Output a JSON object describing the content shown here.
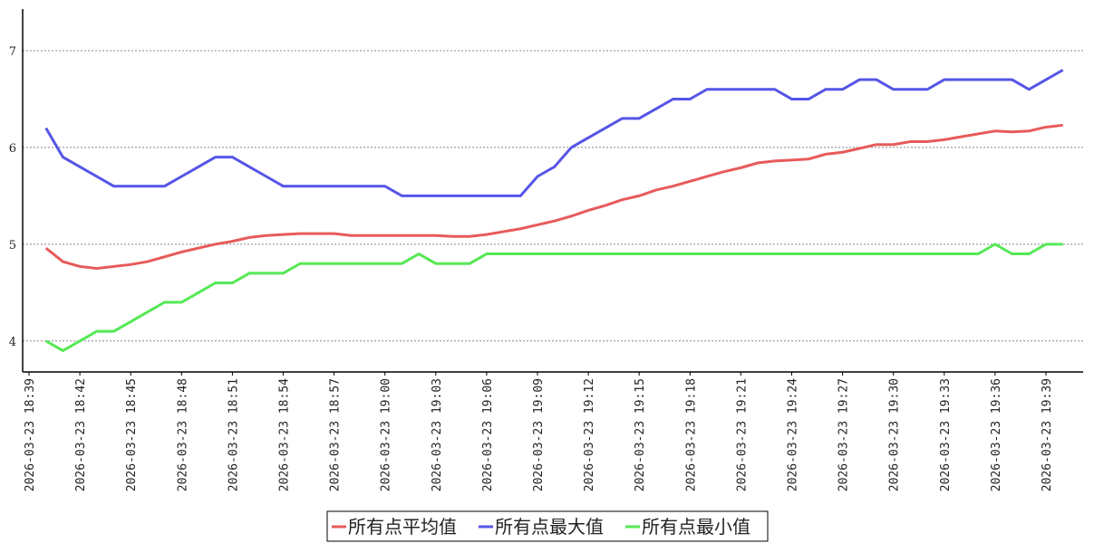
{
  "chart_data": {
    "type": "line",
    "x": [
      "2026-03-23 18:40",
      "2026-03-23 18:41",
      "2026-03-23 18:42",
      "2026-03-23 18:43",
      "2026-03-23 18:44",
      "2026-03-23 18:45",
      "2026-03-23 18:46",
      "2026-03-23 18:47",
      "2026-03-23 18:48",
      "2026-03-23 18:49",
      "2026-03-23 18:50",
      "2026-03-23 18:51",
      "2026-03-23 18:52",
      "2026-03-23 18:53",
      "2026-03-23 18:54",
      "2026-03-23 18:55",
      "2026-03-23 18:56",
      "2026-03-23 18:57",
      "2026-03-23 18:58",
      "2026-03-23 18:59",
      "2026-03-23 19:00",
      "2026-03-23 19:01",
      "2026-03-23 19:02",
      "2026-03-23 19:03",
      "2026-03-23 19:04",
      "2026-03-23 19:05",
      "2026-03-23 19:06",
      "2026-03-23 19:07",
      "2026-03-23 19:08",
      "2026-03-23 19:09",
      "2026-03-23 19:10",
      "2026-03-23 19:11",
      "2026-03-23 19:12",
      "2026-03-23 19:13",
      "2026-03-23 19:14",
      "2026-03-23 19:15",
      "2026-03-23 19:16",
      "2026-03-23 19:17",
      "2026-03-23 19:18",
      "2026-03-23 19:19",
      "2026-03-23 19:20",
      "2026-03-23 19:21",
      "2026-03-23 19:22",
      "2026-03-23 19:23",
      "2026-03-23 19:24",
      "2026-03-23 19:25",
      "2026-03-23 19:26",
      "2026-03-23 19:27",
      "2026-03-23 19:28",
      "2026-03-23 19:29",
      "2026-03-23 19:30",
      "2026-03-23 19:31",
      "2026-03-23 19:32",
      "2026-03-23 19:33",
      "2026-03-23 19:34",
      "2026-03-23 19:35",
      "2026-03-23 19:36",
      "2026-03-23 19:37",
      "2026-03-23 19:38",
      "2026-03-23 19:39",
      "2026-03-23 19:40"
    ],
    "xticks": [
      "2026-03-23 18:39",
      "2026-03-23 18:42",
      "2026-03-23 18:45",
      "2026-03-23 18:48",
      "2026-03-23 18:51",
      "2026-03-23 18:54",
      "2026-03-23 18:57",
      "2026-03-23 19:00",
      "2026-03-23 19:03",
      "2026-03-23 19:06",
      "2026-03-23 19:09",
      "2026-03-23 19:12",
      "2026-03-23 19:15",
      "2026-03-23 19:18",
      "2026-03-23 19:21",
      "2026-03-23 19:24",
      "2026-03-23 19:27",
      "2026-03-23 19:30",
      "2026-03-23 19:33",
      "2026-03-23 19:36",
      "2026-03-23 19:39"
    ],
    "series": [
      {
        "name": "所有点平均值",
        "color": "#e85a5a",
        "values": [
          4.96,
          4.82,
          4.77,
          4.75,
          4.77,
          4.79,
          4.82,
          4.87,
          4.92,
          4.96,
          5.0,
          5.03,
          5.07,
          5.09,
          5.1,
          5.11,
          5.11,
          5.11,
          5.09,
          5.09,
          5.09,
          5.09,
          5.09,
          5.09,
          5.08,
          5.08,
          5.1,
          5.13,
          5.16,
          5.2,
          5.24,
          5.29,
          5.35,
          5.4,
          5.46,
          5.5,
          5.56,
          5.6,
          5.65,
          5.7,
          5.75,
          5.79,
          5.84,
          5.86,
          5.87,
          5.88,
          5.93,
          5.95,
          5.99,
          6.03,
          6.03,
          6.06,
          6.06,
          6.08,
          6.11,
          6.14,
          6.17,
          6.16,
          6.17,
          6.21,
          6.23
        ]
      },
      {
        "name": "所有点最大值",
        "color": "#5555e8",
        "values": [
          6.2,
          5.9,
          5.8,
          5.7,
          5.6,
          5.6,
          5.6,
          5.6,
          5.7,
          5.8,
          5.9,
          5.9,
          5.8,
          5.7,
          5.6,
          5.6,
          5.6,
          5.6,
          5.6,
          5.6,
          5.6,
          5.5,
          5.5,
          5.5,
          5.5,
          5.5,
          5.5,
          5.5,
          5.5,
          5.7,
          5.8,
          6.0,
          6.1,
          6.2,
          6.3,
          6.3,
          6.4,
          6.5,
          6.5,
          6.6,
          6.6,
          6.6,
          6.6,
          6.6,
          6.5,
          6.5,
          6.6,
          6.6,
          6.7,
          6.7,
          6.6,
          6.6,
          6.6,
          6.7,
          6.7,
          6.7,
          6.7,
          6.7,
          6.6,
          6.7,
          6.8
        ]
      },
      {
        "name": "所有点最小值",
        "color": "#55e855",
        "values": [
          4.0,
          3.9,
          4.0,
          4.1,
          4.1,
          4.2,
          4.3,
          4.4,
          4.4,
          4.5,
          4.6,
          4.6,
          4.7,
          4.7,
          4.7,
          4.8,
          4.8,
          4.8,
          4.8,
          4.8,
          4.8,
          4.8,
          4.9,
          4.8,
          4.8,
          4.8,
          4.9,
          4.9,
          4.9,
          4.9,
          4.9,
          4.9,
          4.9,
          4.9,
          4.9,
          4.9,
          4.9,
          4.9,
          4.9,
          4.9,
          4.9,
          4.9,
          4.9,
          4.9,
          4.9,
          4.9,
          4.9,
          4.9,
          4.9,
          4.9,
          4.9,
          4.9,
          4.9,
          4.9,
          4.9,
          4.9,
          5.0,
          4.9,
          4.9,
          5.0,
          5.0
        ]
      }
    ],
    "ylim": [
      3.68,
      7.43
    ],
    "yticks": [
      4,
      5,
      6,
      7
    ],
    "grid": true,
    "legend": "bottom"
  }
}
